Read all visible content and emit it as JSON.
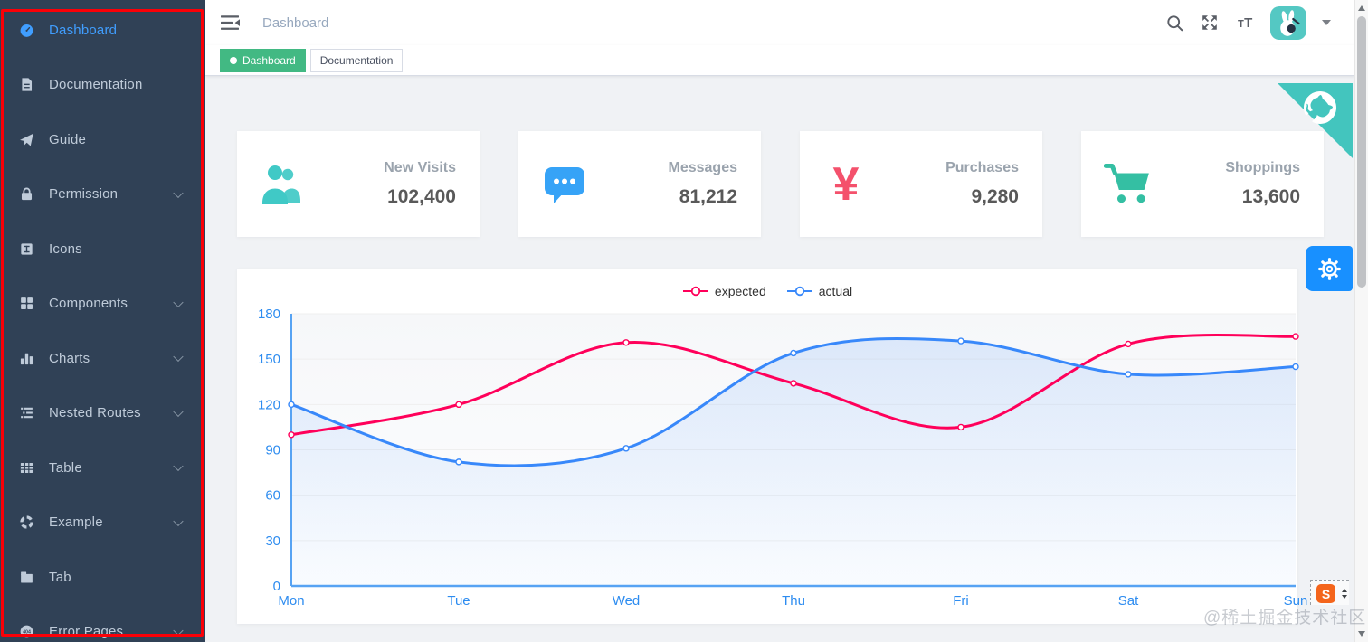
{
  "sidebar": {
    "items": [
      {
        "label": "Dashboard",
        "icon": "dashboard-icon",
        "active": true,
        "arrow": false
      },
      {
        "label": "Documentation",
        "icon": "documentation-icon",
        "active": false,
        "arrow": false
      },
      {
        "label": "Guide",
        "icon": "guide-icon",
        "active": false,
        "arrow": false
      },
      {
        "label": "Permission",
        "icon": "lock-icon",
        "active": false,
        "arrow": true
      },
      {
        "label": "Icons",
        "icon": "icons-icon",
        "active": false,
        "arrow": false
      },
      {
        "label": "Components",
        "icon": "components-icon",
        "active": false,
        "arrow": true
      },
      {
        "label": "Charts",
        "icon": "charts-icon",
        "active": false,
        "arrow": true
      },
      {
        "label": "Nested Routes",
        "icon": "nested-routes-icon",
        "active": false,
        "arrow": true
      },
      {
        "label": "Table",
        "icon": "table-icon",
        "active": false,
        "arrow": true
      },
      {
        "label": "Example",
        "icon": "example-icon",
        "active": false,
        "arrow": true
      },
      {
        "label": "Tab",
        "icon": "tab-icon",
        "active": false,
        "arrow": false
      },
      {
        "label": "Error Pages",
        "icon": "error-pages-icon",
        "active": false,
        "arrow": true
      }
    ]
  },
  "navbar": {
    "breadcrumb": "Dashboard",
    "text_size_label": "тT"
  },
  "tags": [
    {
      "label": "Dashboard",
      "active": true
    },
    {
      "label": "Documentation",
      "active": false
    }
  ],
  "cards": [
    {
      "title": "New Visits",
      "value": "102,400",
      "icon": "people-icon",
      "color": "#40c9c6"
    },
    {
      "title": "Messages",
      "value": "81,212",
      "icon": "message-icon",
      "color": "#36a3f7"
    },
    {
      "title": "Purchases",
      "value": "9,280",
      "icon": "money-icon",
      "color": "#f4516c",
      "glyph": "¥"
    },
    {
      "title": "Shoppings",
      "value": "13,600",
      "icon": "cart-icon",
      "color": "#34bfa3"
    }
  ],
  "chart_data": {
    "type": "line",
    "categories": [
      "Mon",
      "Tue",
      "Wed",
      "Thu",
      "Fri",
      "Sat",
      "Sun"
    ],
    "series": [
      {
        "name": "expected",
        "color": "#FF005A",
        "values": [
          100,
          120,
          161,
          134,
          105,
          160,
          165
        ],
        "area": false
      },
      {
        "name": "actual",
        "color": "#3888fa",
        "values": [
          120,
          82,
          91,
          154,
          162,
          140,
          145
        ],
        "area": true
      }
    ],
    "ylim": [
      0,
      180
    ],
    "yticks": [
      0,
      30,
      60,
      90,
      120,
      150,
      180
    ],
    "legend_position": "top",
    "grid": true,
    "axis_label_color": "#2d8cf0",
    "axis_line_color": "#57a3f3",
    "smooth": true
  },
  "widgets": {
    "watermark": "@稀土掘金技术社区",
    "snip_label": "S"
  },
  "colors": {
    "sidebar_bg": "#304156",
    "sidebar_text": "#bfcbd9",
    "active_link": "#409eff",
    "tag_active": "#42b983",
    "ribbon": "#43c5be",
    "gear_button": "#1890ff",
    "annotation": "#fb0007"
  }
}
